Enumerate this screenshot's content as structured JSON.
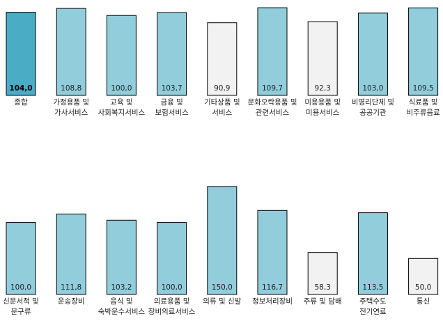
{
  "chart_data": [
    {
      "type": "bar",
      "categories": [
        [
          "종합"
        ],
        [
          "가정용품 및",
          "가사서비스"
        ],
        [
          "교육 및",
          "사회복지서비스"
        ],
        [
          "금융 및",
          "보험서비스"
        ],
        [
          "기타상품 및",
          "서비스"
        ],
        [
          "문화오락용품 및",
          "관련서비스"
        ],
        [
          "미용용품 및",
          "미용서비스"
        ],
        [
          "비영리단체 및",
          "공공기관"
        ],
        [
          "식료품 및",
          "비주류음료"
        ]
      ],
      "values": [
        104.0,
        108.8,
        100.0,
        103.7,
        90.9,
        109.7,
        92.3,
        103.0,
        109.5
      ],
      "value_labels": [
        "104,0",
        "108,8",
        "100,0",
        "103,7",
        "90,9",
        "109,7",
        "92,3",
        "103,0",
        "109,5"
      ],
      "bar_styles": [
        "highlight",
        "normal",
        "normal",
        "normal",
        "below",
        "normal",
        "below",
        "normal",
        "normal"
      ],
      "ylim": [
        0,
        115
      ]
    },
    {
      "type": "bar",
      "categories": [
        [
          "신문서적 및",
          "문구류"
        ],
        [
          "운송장비"
        ],
        [
          "음식 및",
          "숙박운수서비스"
        ],
        [
          "의료용품 및",
          "장비의료서비스"
        ],
        [
          "의류 및 신발"
        ],
        [
          "정보처리장비"
        ],
        [
          "주류 및 담배"
        ],
        [
          "주택수도",
          "전기연료"
        ],
        [
          "통신"
        ]
      ],
      "values": [
        100.0,
        111.8,
        103.2,
        100.0,
        150.0,
        116.7,
        58.3,
        113.5,
        50.0
      ],
      "value_labels": [
        "100,0",
        "111,8",
        "103,2",
        "100,0",
        "150,0",
        "116,7",
        "58,3",
        "113,5",
        "50,0"
      ],
      "bar_styles": [
        "normal",
        "normal",
        "normal",
        "normal",
        "normal",
        "normal",
        "below",
        "normal",
        "below"
      ],
      "ylim": [
        0,
        175
      ]
    }
  ],
  "colors": {
    "normal_fill": "#92cddc",
    "highlight_fill": "#4bacc6",
    "below_fill": "#f2f2f2",
    "bar_stroke": "#000000"
  }
}
